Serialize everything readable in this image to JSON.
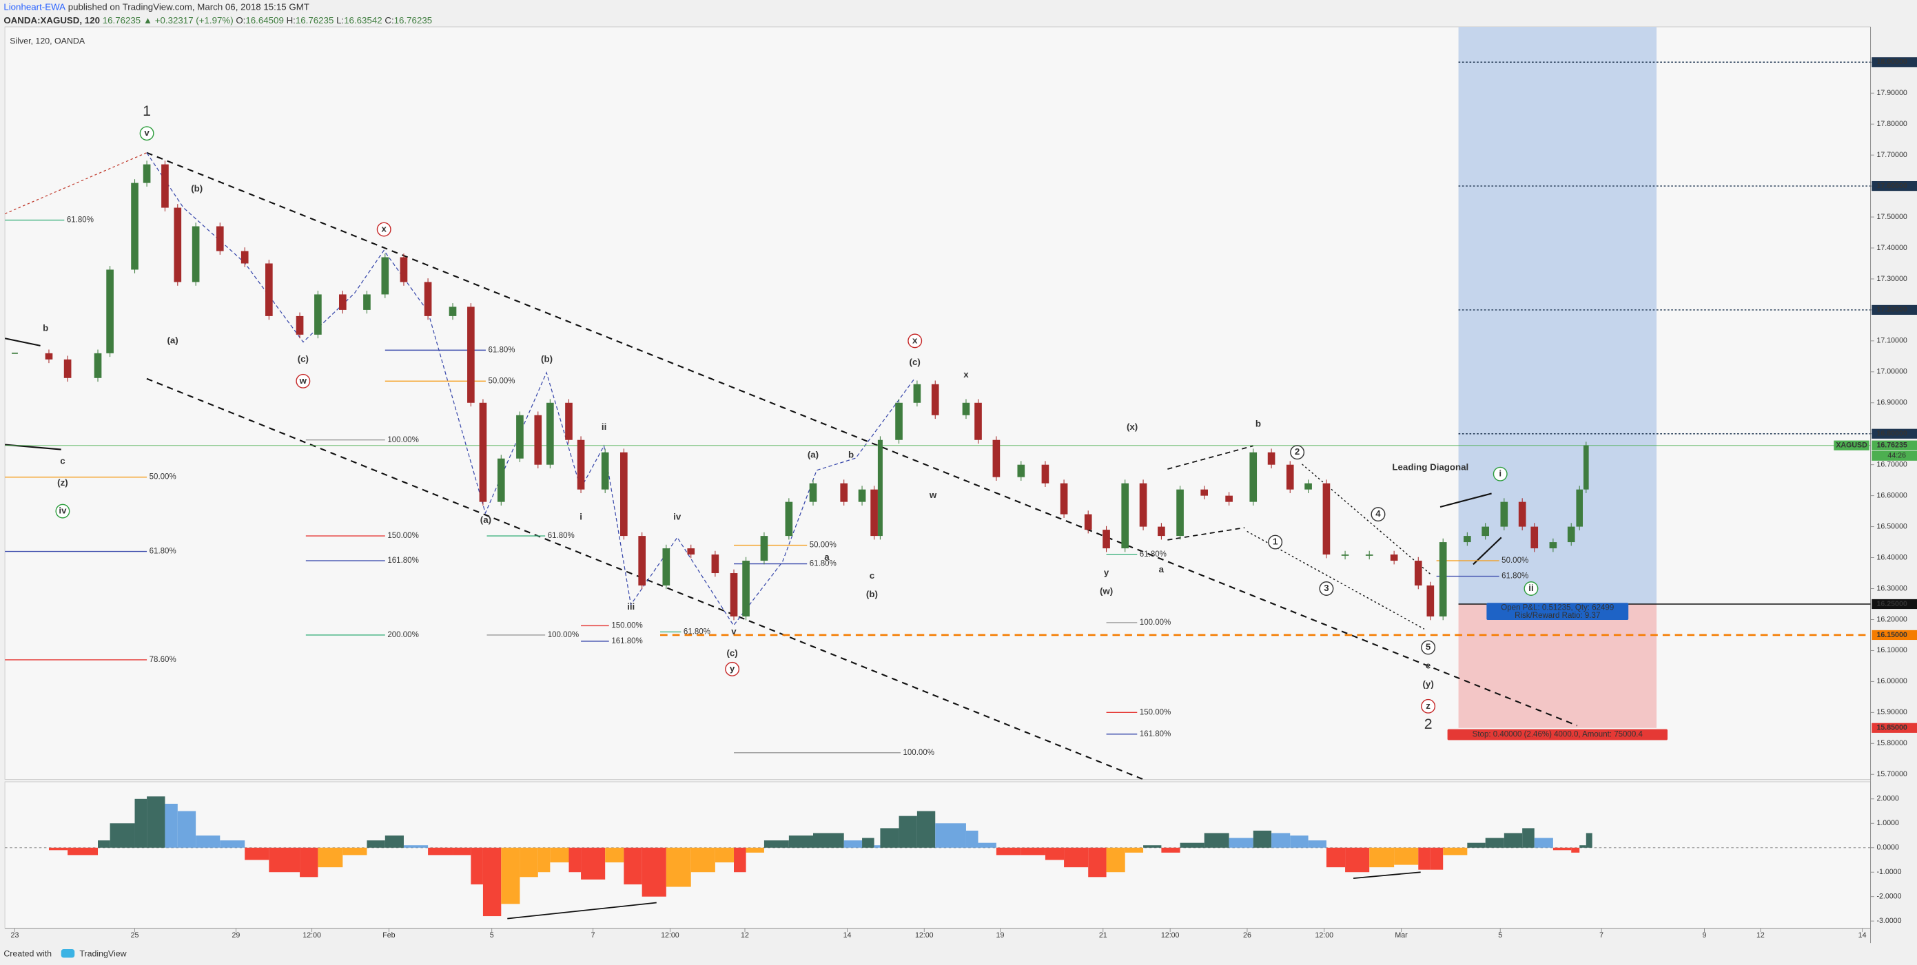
{
  "header": {
    "author": "Lionheart-EWA",
    "published": "published on TradingView.com, March 06, 2018 15:15 GMT",
    "symbol": "OANDA:XAGUSD, 120",
    "last": "16.76235",
    "change": "▲ +0.32317 (+1.97%)",
    "open_label": "O:",
    "open": "16.64509",
    "high_label": "H:",
    "high": "16.76235",
    "low_label": "L:",
    "low": "16.63542",
    "close_label": "C:",
    "close": "16.76235"
  },
  "chart_data": {
    "type": "candlestick",
    "title": "Silver, 120, OANDA",
    "countdown": "44:26",
    "x": [
      0,
      0.62,
      0.96,
      1.51,
      1.73,
      2.18,
      2.4,
      2.73,
      2.96,
      3.29,
      3.73,
      4.18,
      4.62,
      5.18,
      5.51,
      5.96,
      6.4,
      6.73,
      7.07,
      7.51,
      7.96,
      8.29,
      8.51,
      8.84,
      9.18,
      9.51,
      9.73,
      10.07,
      10.29,
      10.73,
      11.07,
      11.4,
      11.84,
      12.29,
      12.73,
      13.07,
      13.29,
      13.62,
      14.07,
      14.51,
      15.07,
      15.4,
      15.62,
      15.73,
      16.07,
      16.4,
      16.73,
      17.29,
      17.51,
      17.84,
      18.29,
      18.73,
      19.07,
      19.51,
      19.84,
      20.18,
      20.51,
      20.84,
      21.18,
      21.62,
      22.07,
      22.51,
      22.84,
      23.18,
      23.51,
      23.84,
      24.18,
      24.62,
      25.07,
      25.51,
      25.73,
      25.96,
      26.4,
      26.73,
      27.07,
      27.4,
      27.62,
      27.96,
      28.29,
      28.44,
      28.56
    ],
    "series": [
      {
        "name": "XAGUSD",
        "up_color": "#3f7d3f",
        "down_color": "#a52a2a",
        "values": [
          17.06,
          17.04,
          16.98,
          17.06,
          17.33,
          17.61,
          17.67,
          17.53,
          17.29,
          17.47,
          17.39,
          17.35,
          17.18,
          17.12,
          17.25,
          17.2,
          17.25,
          17.37,
          17.29,
          17.18,
          17.21,
          16.9,
          16.58,
          16.72,
          16.86,
          16.7,
          16.9,
          16.78,
          16.62,
          16.74,
          16.47,
          16.31,
          16.43,
          16.41,
          16.35,
          16.21,
          16.39,
          16.47,
          16.58,
          16.64,
          16.58,
          16.62,
          16.47,
          16.78,
          16.9,
          16.96,
          16.86,
          16.9,
          16.78,
          16.66,
          16.7,
          16.64,
          16.54,
          16.49,
          16.43,
          16.64,
          16.5,
          16.47,
          16.62,
          16.6,
          16.58,
          16.74,
          16.7,
          16.62,
          16.64,
          16.41,
          16.41,
          16.41,
          16.39,
          16.31,
          16.21,
          16.45,
          16.47,
          16.5,
          16.58,
          16.5,
          16.43,
          16.45,
          16.5,
          16.62,
          16.76235
        ]
      }
    ],
    "xlim": [
      -0.18,
      33.73
    ],
    "xticks": [
      {
        "value": 0,
        "label": "23"
      },
      {
        "value": 2.18,
        "label": "25"
      },
      {
        "value": 4.02,
        "label": "29"
      },
      {
        "value": 5.4,
        "label": "12:00"
      },
      {
        "value": 6.8,
        "label": "Feb"
      },
      {
        "value": 8.67,
        "label": "5"
      },
      {
        "value": 10.51,
        "label": "7"
      },
      {
        "value": 11.91,
        "label": "12:00"
      },
      {
        "value": 13.27,
        "label": "12"
      },
      {
        "value": 15.13,
        "label": "14"
      },
      {
        "value": 16.53,
        "label": "12:00"
      },
      {
        "value": 17.91,
        "label": "19"
      },
      {
        "value": 19.78,
        "label": "21"
      },
      {
        "value": 21.0,
        "label": "12:00"
      },
      {
        "value": 22.4,
        "label": "26"
      },
      {
        "value": 23.8,
        "label": "12:00"
      },
      {
        "value": 25.2,
        "label": "Mar"
      },
      {
        "value": 27.0,
        "label": "5"
      },
      {
        "value": 28.84,
        "label": "7"
      },
      {
        "value": 30.71,
        "label": "9"
      },
      {
        "value": 31.73,
        "label": "12"
      },
      {
        "value": 33.58,
        "label": "14"
      }
    ],
    "ylim": [
      15.684,
      18.114
    ],
    "yticks": [
      {
        "value": 15.7,
        "label": "15.70000"
      },
      {
        "value": 15.8,
        "label": "15.80000"
      },
      {
        "value": 15.9,
        "label": "15.90000"
      },
      {
        "value": 16.0,
        "label": "16.00000"
      },
      {
        "value": 16.1,
        "label": "16.10000"
      },
      {
        "value": 16.2,
        "label": "16.20000"
      },
      {
        "value": 16.3,
        "label": "16.30000"
      },
      {
        "value": 16.4,
        "label": "16.40000"
      },
      {
        "value": 16.5,
        "label": "16.50000"
      },
      {
        "value": 16.6,
        "label": "16.60000"
      },
      {
        "value": 16.7,
        "label": "16.70000"
      },
      {
        "value": 16.8,
        "label": "16.80000"
      },
      {
        "value": 16.9,
        "label": "16.90000"
      },
      {
        "value": 17.0,
        "label": "17.00000"
      },
      {
        "value": 17.1,
        "label": "17.10000"
      },
      {
        "value": 17.2,
        "label": "17.20000"
      },
      {
        "value": 17.3,
        "label": "17.30000"
      },
      {
        "value": 17.4,
        "label": "17.40000"
      },
      {
        "value": 17.5,
        "label": "17.50000"
      },
      {
        "value": 17.6,
        "label": "17.60000"
      },
      {
        "value": 17.7,
        "label": "17.70000"
      },
      {
        "value": 17.8,
        "label": "17.80000"
      },
      {
        "value": 17.9,
        "label": "17.90000"
      },
      {
        "value": 18.0,
        "label": "18.00000"
      }
    ],
    "price_tags": [
      {
        "value": 18.0,
        "label": "18.00000",
        "color": "#1e3550",
        "line_from": 26.24,
        "dash": "dotted"
      },
      {
        "value": 17.6,
        "label": "17.60000",
        "color": "#1e3550",
        "line_from": 26.24,
        "dash": "dotted"
      },
      {
        "value": 17.2,
        "label": "17.20000",
        "color": "#1e3550",
        "line_from": 26.24,
        "dash": "dotted"
      },
      {
        "value": 16.8,
        "label": "16.80000",
        "color": "#1e3550",
        "line_from": 26.24,
        "dash": "dotted"
      },
      {
        "value": 16.76235,
        "label": "16.76235",
        "color": "#4caf50",
        "line_from": -0.18,
        "dash": "solid"
      },
      {
        "value": 16.25,
        "label": "16.25000",
        "color": "#111111",
        "line_from": 26.24,
        "dash": "solid"
      },
      {
        "value": 16.15,
        "label": "16.15000",
        "color": "#f57c00",
        "line_from": 11.73,
        "dash": "dashed"
      },
      {
        "value": 15.85,
        "label": "15.85000",
        "color": "#e53935",
        "line_from": null,
        "dash": "none"
      }
    ],
    "position": {
      "from": 26.24,
      "to": 29.84,
      "entry": 16.25,
      "target": 19.998,
      "stop": 15.85,
      "profit_color": "#c5d5ec",
      "loss_color": "#f3c6c6",
      "open_pl": "Open P&L: 0.51235, Qty: 62499",
      "risk_reward": "Risk/Reward Ratio: 9.37",
      "stop_text": "Stop: 0.40000 (2.46%) 4000.0, Amount: 75000.4"
    },
    "annotations": [
      {
        "text": "1",
        "x": 2.4,
        "y": 17.84,
        "color": "#7b1fa2",
        "style": "large"
      },
      {
        "text": "v",
        "x": 2.4,
        "y": 17.77,
        "color": "#2e9e3e",
        "style": "circle"
      },
      {
        "text": "(b)",
        "x": 3.31,
        "y": 17.59,
        "color": "#222222",
        "style": "plain"
      },
      {
        "text": "(a)",
        "x": 2.87,
        "y": 17.1,
        "color": "#222222",
        "style": "plain"
      },
      {
        "text": "(c)",
        "x": 5.24,
        "y": 17.04,
        "color": "#222222",
        "style": "plain"
      },
      {
        "text": "w",
        "x": 5.24,
        "y": 16.97,
        "color": "#c62828",
        "style": "circle"
      },
      {
        "text": "x",
        "x": 6.71,
        "y": 17.46,
        "color": "#c62828",
        "style": "circle"
      },
      {
        "text": "b",
        "x": 0.56,
        "y": 17.14,
        "color": "#c77c0e",
        "style": "plain"
      },
      {
        "text": "c",
        "x": 0.87,
        "y": 16.71,
        "color": "#c77c0e",
        "style": "plain"
      },
      {
        "text": "(z)",
        "x": 0.87,
        "y": 16.64,
        "color": "#c62828",
        "style": "plain"
      },
      {
        "text": "iv",
        "x": 0.87,
        "y": 16.55,
        "color": "#2e9e3e",
        "style": "circle"
      },
      {
        "text": "(b)",
        "x": 9.67,
        "y": 17.04,
        "color": "#222222",
        "style": "plain"
      },
      {
        "text": "(a)",
        "x": 8.56,
        "y": 16.52,
        "color": "#222222",
        "style": "plain"
      },
      {
        "text": "ii",
        "x": 10.71,
        "y": 16.82,
        "color": "#1a3fa6",
        "style": "plain"
      },
      {
        "text": "i",
        "x": 10.29,
        "y": 16.53,
        "color": "#1a3fa6",
        "style": "plain"
      },
      {
        "text": "iii",
        "x": 11.2,
        "y": 16.24,
        "color": "#1a3fa6",
        "style": "plain"
      },
      {
        "text": "iv",
        "x": 12.04,
        "y": 16.53,
        "color": "#1a3fa6",
        "style": "plain"
      },
      {
        "text": "v",
        "x": 13.07,
        "y": 16.16,
        "color": "#1a3fa6",
        "style": "plain"
      },
      {
        "text": "(c)",
        "x": 13.04,
        "y": 16.09,
        "color": "#222222",
        "style": "plain"
      },
      {
        "text": "y",
        "x": 13.04,
        "y": 16.04,
        "color": "#c62828",
        "style": "circle"
      },
      {
        "text": "(a)",
        "x": 14.51,
        "y": 16.73,
        "color": "#c77c0e",
        "style": "plain"
      },
      {
        "text": "b",
        "x": 15.2,
        "y": 16.73,
        "color": "#1a3fa6",
        "style": "plain"
      },
      {
        "text": "a",
        "x": 14.76,
        "y": 16.4,
        "color": "#1a3fa6",
        "style": "plain"
      },
      {
        "text": "c",
        "x": 15.58,
        "y": 16.34,
        "color": "#1a3fa6",
        "style": "plain"
      },
      {
        "text": "(b)",
        "x": 15.58,
        "y": 16.28,
        "color": "#c77c0e",
        "style": "plain"
      },
      {
        "text": "x",
        "x": 16.36,
        "y": 17.1,
        "color": "#c62828",
        "style": "circle"
      },
      {
        "text": "(c)",
        "x": 16.36,
        "y": 17.03,
        "color": "#c77c0e",
        "style": "plain"
      },
      {
        "text": "x",
        "x": 17.29,
        "y": 16.99,
        "color": "#7b1fa2",
        "style": "plain"
      },
      {
        "text": "w",
        "x": 16.69,
        "y": 16.6,
        "color": "#7b1fa2",
        "style": "plain"
      },
      {
        "text": "(x)",
        "x": 20.31,
        "y": 16.82,
        "color": "#c77c0e",
        "style": "plain"
      },
      {
        "text": "y",
        "x": 19.84,
        "y": 16.35,
        "color": "#7b1fa2",
        "style": "plain"
      },
      {
        "text": "(w)",
        "x": 19.84,
        "y": 16.29,
        "color": "#c77c0e",
        "style": "plain"
      },
      {
        "text": "a",
        "x": 20.84,
        "y": 16.36,
        "color": "#1a3fa6",
        "style": "plain"
      },
      {
        "text": "b",
        "x": 22.6,
        "y": 16.83,
        "color": "#1a3fa6",
        "style": "plain"
      },
      {
        "text": "2",
        "x": 23.31,
        "y": 16.74,
        "color": "#333333",
        "style": "circle"
      },
      {
        "text": "1",
        "x": 22.91,
        "y": 16.45,
        "color": "#333333",
        "style": "circle"
      },
      {
        "text": "3",
        "x": 23.84,
        "y": 16.3,
        "color": "#333333",
        "style": "circle"
      },
      {
        "text": "4",
        "x": 24.78,
        "y": 16.54,
        "color": "#333333",
        "style": "circle"
      },
      {
        "text": "5",
        "x": 25.69,
        "y": 16.11,
        "color": "#333333",
        "style": "circle"
      },
      {
        "text": "e",
        "x": 25.69,
        "y": 16.05,
        "color": "#1a3fa6",
        "style": "plain"
      },
      {
        "text": "(y)",
        "x": 25.69,
        "y": 15.99,
        "color": "#c77c0e",
        "style": "plain"
      },
      {
        "text": "z",
        "x": 25.69,
        "y": 15.92,
        "color": "#c62828",
        "style": "circle"
      },
      {
        "text": "2",
        "x": 25.69,
        "y": 15.86,
        "color": "#7b1fa2",
        "style": "large"
      },
      {
        "text": "Leading Diagonal",
        "x": 25.73,
        "y": 16.69,
        "color": "#2b4d6e",
        "style": "plain"
      },
      {
        "text": "i",
        "x": 27.0,
        "y": 16.67,
        "color": "#2e9e3e",
        "style": "circle"
      },
      {
        "text": "ii",
        "x": 27.56,
        "y": 16.3,
        "color": "#2e9e3e",
        "style": "circle"
      }
    ],
    "fib_levels": [
      {
        "label": "61.80%",
        "value": 17.49,
        "from": -0.18,
        "to": 0.9,
        "color": "#3fb27f"
      },
      {
        "label": "50.00%",
        "value": 16.66,
        "from": -0.18,
        "to": 2.4,
        "color": "#f59d1a"
      },
      {
        "label": "61.80%",
        "value": 16.42,
        "from": -0.18,
        "to": 2.4,
        "color": "#3949ab"
      },
      {
        "label": "78.60%",
        "value": 16.07,
        "from": -0.18,
        "to": 2.4,
        "color": "#e53935"
      },
      {
        "label": "100.00%",
        "value": 16.78,
        "from": 5.29,
        "to": 6.73,
        "color": "#999999"
      },
      {
        "label": "150.00%",
        "value": 16.47,
        "from": 5.29,
        "to": 6.73,
        "color": "#e53935"
      },
      {
        "label": "161.80%",
        "value": 16.39,
        "from": 5.29,
        "to": 6.73,
        "color": "#3949ab"
      },
      {
        "label": "200.00%",
        "value": 16.15,
        "from": 5.29,
        "to": 6.73,
        "color": "#3fb27f"
      },
      {
        "label": "61.80%",
        "value": 17.07,
        "from": 6.73,
        "to": 8.56,
        "color": "#3949ab"
      },
      {
        "label": "50.00%",
        "value": 16.97,
        "from": 6.73,
        "to": 8.56,
        "color": "#f59d1a"
      },
      {
        "label": "61.80%",
        "value": 16.47,
        "from": 8.58,
        "to": 9.64,
        "color": "#3fb27f"
      },
      {
        "label": "100.00%",
        "value": 16.15,
        "from": 8.58,
        "to": 9.64,
        "color": "#999999"
      },
      {
        "label": "150.00%",
        "value": 16.18,
        "from": 10.29,
        "to": 10.8,
        "color": "#e53935"
      },
      {
        "label": "161.80%",
        "value": 16.13,
        "from": 10.29,
        "to": 10.8,
        "color": "#3949ab"
      },
      {
        "label": "61.80%",
        "value": 16.16,
        "from": 11.73,
        "to": 12.11,
        "color": "#3fb27f"
      },
      {
        "label": "50.00%",
        "value": 16.44,
        "from": 13.07,
        "to": 14.4,
        "color": "#f59d1a"
      },
      {
        "label": "61.80%",
        "value": 16.38,
        "from": 13.07,
        "to": 14.4,
        "color": "#3949ab"
      },
      {
        "label": "100.00%",
        "value": 15.77,
        "from": 13.07,
        "to": 16.1,
        "color": "#999999"
      },
      {
        "label": "61.80%",
        "value": 16.41,
        "from": 19.84,
        "to": 20.4,
        "color": "#3fb27f"
      },
      {
        "label": "100.00%",
        "value": 16.19,
        "from": 19.84,
        "to": 20.4,
        "color": "#999999"
      },
      {
        "label": "150.00%",
        "value": 15.9,
        "from": 19.84,
        "to": 20.4,
        "color": "#e53935"
      },
      {
        "label": "161.80%",
        "value": 15.83,
        "from": 19.84,
        "to": 20.4,
        "color": "#3949ab"
      },
      {
        "label": "50.00%",
        "value": 16.39,
        "from": 25.84,
        "to": 26.98,
        "color": "#f59d1a"
      },
      {
        "label": "61.80%",
        "value": 16.34,
        "from": 25.84,
        "to": 26.98,
        "color": "#3949ab"
      }
    ],
    "oscillator": {
      "ylim": [
        -3.3,
        2.7
      ],
      "yticks": [
        {
          "value": 2,
          "label": "2.0000"
        },
        {
          "value": 1,
          "label": "1.0000"
        },
        {
          "value": 0,
          "label": "0.0000"
        },
        {
          "value": -1,
          "label": "-1.0000"
        },
        {
          "value": -2,
          "label": "-2.0000"
        },
        {
          "value": -3,
          "label": "-3.0000"
        }
      ],
      "colors": [
        "#3e6b62",
        "#6ea6e0",
        "#f44336",
        "#ffa726"
      ],
      "values": [
        0,
        -0.1,
        -0.3,
        0.3,
        1.0,
        2.0,
        2.1,
        1.8,
        1.5,
        0.5,
        0.3,
        -0.5,
        -1.0,
        -1.2,
        -0.8,
        -0.3,
        0.3,
        0.5,
        0.1,
        -0.3,
        -0.3,
        -1.5,
        -2.8,
        -2.3,
        -1.2,
        -1.0,
        -0.6,
        -1.0,
        -1.3,
        -0.6,
        -1.5,
        -2.0,
        -1.6,
        -1.0,
        -0.6,
        -1.0,
        -0.2,
        0.3,
        0.5,
        0.6,
        0.3,
        0.4,
        0.1,
        0.8,
        1.3,
        1.5,
        1.0,
        0.7,
        0.2,
        -0.3,
        -0.3,
        -0.5,
        -0.8,
        -1.2,
        -1.0,
        -0.2,
        0.1,
        -0.2,
        0.2,
        0.6,
        0.4,
        0.7,
        0.6,
        0.5,
        0.3,
        -0.8,
        -1.0,
        -0.8,
        -0.7,
        -0.9,
        -0.9,
        -0.3,
        0.2,
        0.4,
        0.6,
        0.8,
        0.4,
        -0.1,
        -0.2,
        0.1,
        0.6
      ]
    }
  },
  "footer": {
    "created_with": "Created with",
    "brand": "TradingView"
  }
}
